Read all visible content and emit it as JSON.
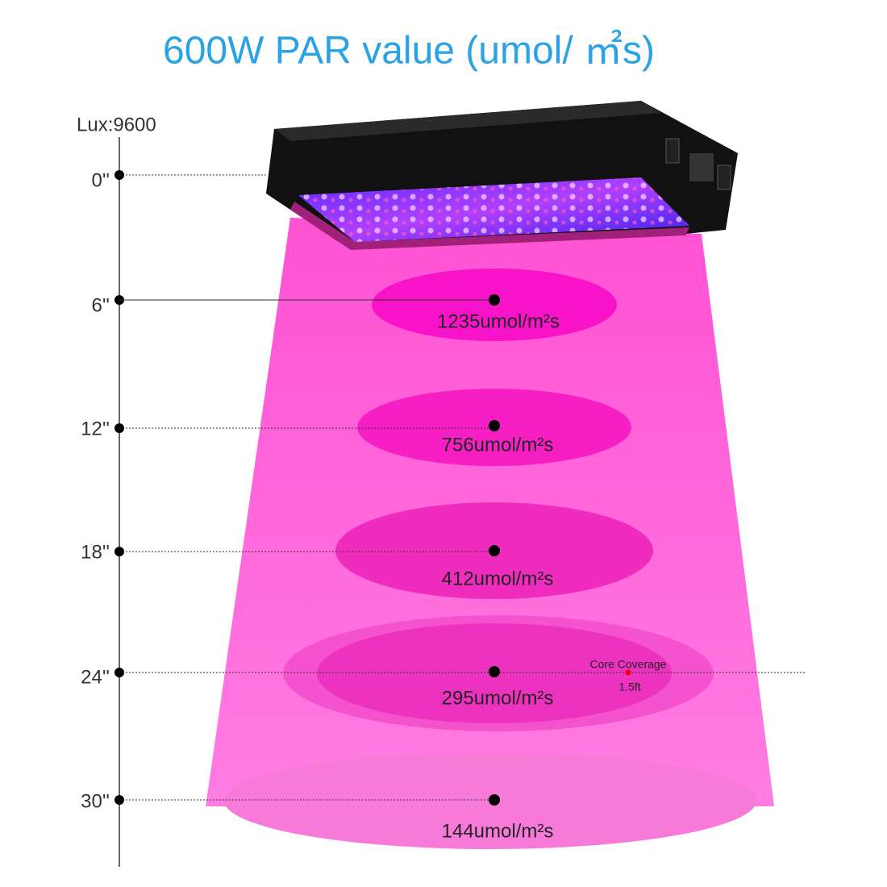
{
  "title": "600W PAR value (umol/ ㎡s)",
  "lux": "Lux:9600",
  "levels": [
    {
      "height": "0''"
    },
    {
      "height": "6''",
      "par": "1235umol/m²s"
    },
    {
      "height": "12''",
      "par": "756umol/m²s"
    },
    {
      "height": "18''",
      "par": "412umol/m²s"
    },
    {
      "height": "24''",
      "par": "295umol/m²s"
    },
    {
      "height": "30''",
      "par": "144umol/m²s"
    }
  ],
  "core_coverage": {
    "label": "Core Coverage",
    "size": "1.5ft"
  }
}
